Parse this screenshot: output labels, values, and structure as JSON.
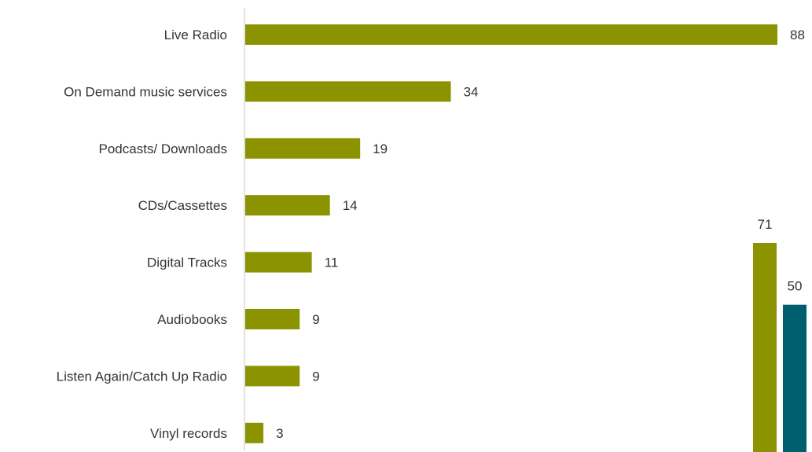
{
  "colors": {
    "primary": "#8B9400",
    "secondary": "#005F6E",
    "axis": "#D9D9D9",
    "text": "#333333"
  },
  "chart_data": [
    {
      "type": "bar",
      "orientation": "horizontal",
      "categories": [
        "Live Radio",
        "On Demand music services",
        "Podcasts/ Downloads",
        "CDs/Cassettes",
        "Digital Tracks",
        "Audiobooks",
        "Listen Again/Catch Up Radio",
        "Vinyl records"
      ],
      "values": [
        88,
        34,
        19,
        14,
        11,
        9,
        9,
        3
      ],
      "xlim": [
        0,
        88
      ],
      "grid": false,
      "legend": "none"
    },
    {
      "type": "bar",
      "orientation": "vertical",
      "series": [
        {
          "values": [
            71
          ]
        },
        {
          "values": [
            50
          ]
        }
      ],
      "ylim": [
        0,
        71
      ],
      "grid": false,
      "legend": "none"
    }
  ]
}
